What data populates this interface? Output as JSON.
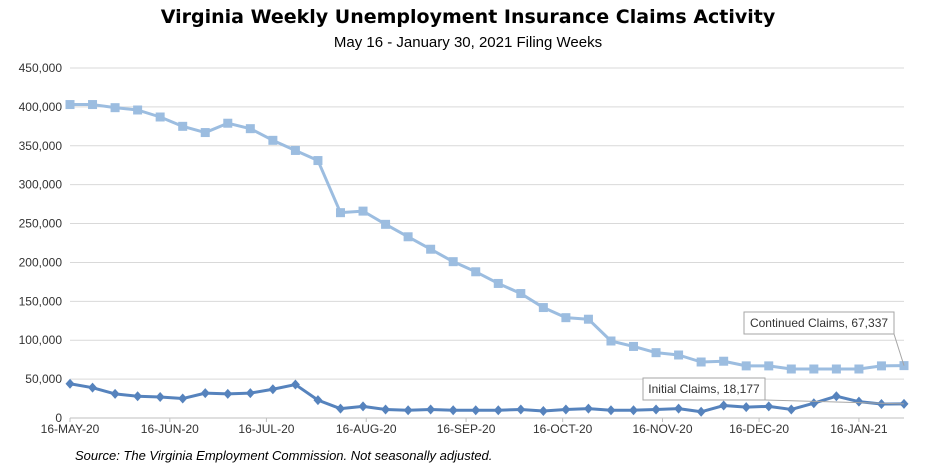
{
  "chart_data": {
    "type": "line",
    "title": "Virginia Weekly Unemployment Insurance Claims Activity",
    "subtitle": "May 16 - January 30, 2021 Filing Weeks",
    "source": "Source: The Virginia Employment Commission. Not seasonally adjusted.",
    "xlabel": "",
    "ylabel": "",
    "ylim": [
      0,
      450000
    ],
    "y_ticks": [
      "0",
      "50,000",
      "100,000",
      "150,000",
      "200,000",
      "250,000",
      "300,000",
      "350,000",
      "400,000",
      "450,000"
    ],
    "x_ticks": [
      "16-MAY-20",
      "16-JUN-20",
      "16-JUL-20",
      "16-AUG-20",
      "16-SEP-20",
      "16-OCT-20",
      "16-NOV-20",
      "16-DEC-20",
      "16-JAN-21"
    ],
    "x_start": "2020-05-16",
    "grid": "y",
    "series": [
      {
        "name": "Continued Claims",
        "color": "#9cbde0",
        "marker": "square",
        "values": [
          403000,
          403000,
          399000,
          396000,
          387000,
          375000,
          367000,
          379000,
          372000,
          357000,
          344000,
          331000,
          264000,
          266000,
          249000,
          233000,
          217000,
          201000,
          188000,
          173000,
          160000,
          142000,
          129000,
          127000,
          99000,
          92000,
          84000,
          81000,
          72000,
          73000,
          67000,
          67000,
          63000,
          63000,
          63000,
          63000,
          67000,
          67337
        ]
      },
      {
        "name": "Initial Claims",
        "color": "#5683bd",
        "marker": "diamond",
        "values": [
          44000,
          39000,
          31000,
          28000,
          27000,
          25000,
          32000,
          31000,
          32000,
          37000,
          43000,
          23000,
          12000,
          15000,
          11000,
          10000,
          11000,
          10000,
          10000,
          10000,
          11000,
          9000,
          11000,
          12000,
          10000,
          10000,
          11000,
          12000,
          8000,
          16000,
          14000,
          15000,
          11000,
          19000,
          28000,
          21000,
          18000,
          18177
        ]
      }
    ],
    "annotations": [
      {
        "series": "Continued Claims",
        "text": "Continued Claims, 67,337",
        "placement": "upper-left of last point"
      },
      {
        "series": "Initial Claims",
        "text": "Initial Claims, 18,177",
        "placement": "upper-left of last point"
      }
    ]
  }
}
